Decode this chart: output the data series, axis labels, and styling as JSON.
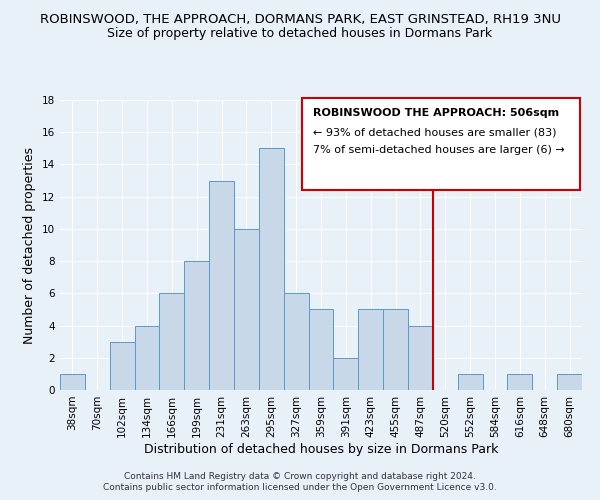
{
  "title": "ROBINSWOOD, THE APPROACH, DORMANS PARK, EAST GRINSTEAD, RH19 3NU",
  "subtitle": "Size of property relative to detached houses in Dormans Park",
  "xlabel": "Distribution of detached houses by size in Dormans Park",
  "ylabel": "Number of detached properties",
  "bin_labels": [
    "38sqm",
    "70sqm",
    "102sqm",
    "134sqm",
    "166sqm",
    "199sqm",
    "231sqm",
    "263sqm",
    "295sqm",
    "327sqm",
    "359sqm",
    "391sqm",
    "423sqm",
    "455sqm",
    "487sqm",
    "520sqm",
    "552sqm",
    "584sqm",
    "616sqm",
    "648sqm",
    "680sqm"
  ],
  "bar_values": [
    1,
    0,
    3,
    4,
    6,
    8,
    13,
    10,
    15,
    6,
    5,
    2,
    5,
    5,
    4,
    0,
    1,
    0,
    1,
    0,
    1
  ],
  "bar_color": "#c8d8e8",
  "bar_edge_color": "#5a9ac8",
  "vline_color": "#cc0000",
  "ylim": [
    0,
    18
  ],
  "yticks": [
    0,
    2,
    4,
    6,
    8,
    10,
    12,
    14,
    16,
    18
  ],
  "annotation_title": "ROBINSWOOD THE APPROACH: 506sqm",
  "annotation_line1": "← 93% of detached houses are smaller (83)",
  "annotation_line2": "7% of semi-detached houses are larger (6) →",
  "footer1": "Contains HM Land Registry data © Crown copyright and database right 2024.",
  "footer2": "Contains public sector information licensed under the Open Government Licence v3.0.",
  "background_color": "#e8f0f8",
  "plot_background": "#e8f0f8",
  "title_fontsize": 9.5,
  "subtitle_fontsize": 9,
  "axis_label_fontsize": 9,
  "tick_fontsize": 7.5,
  "annotation_fontsize": 8,
  "footer_fontsize": 6.5
}
